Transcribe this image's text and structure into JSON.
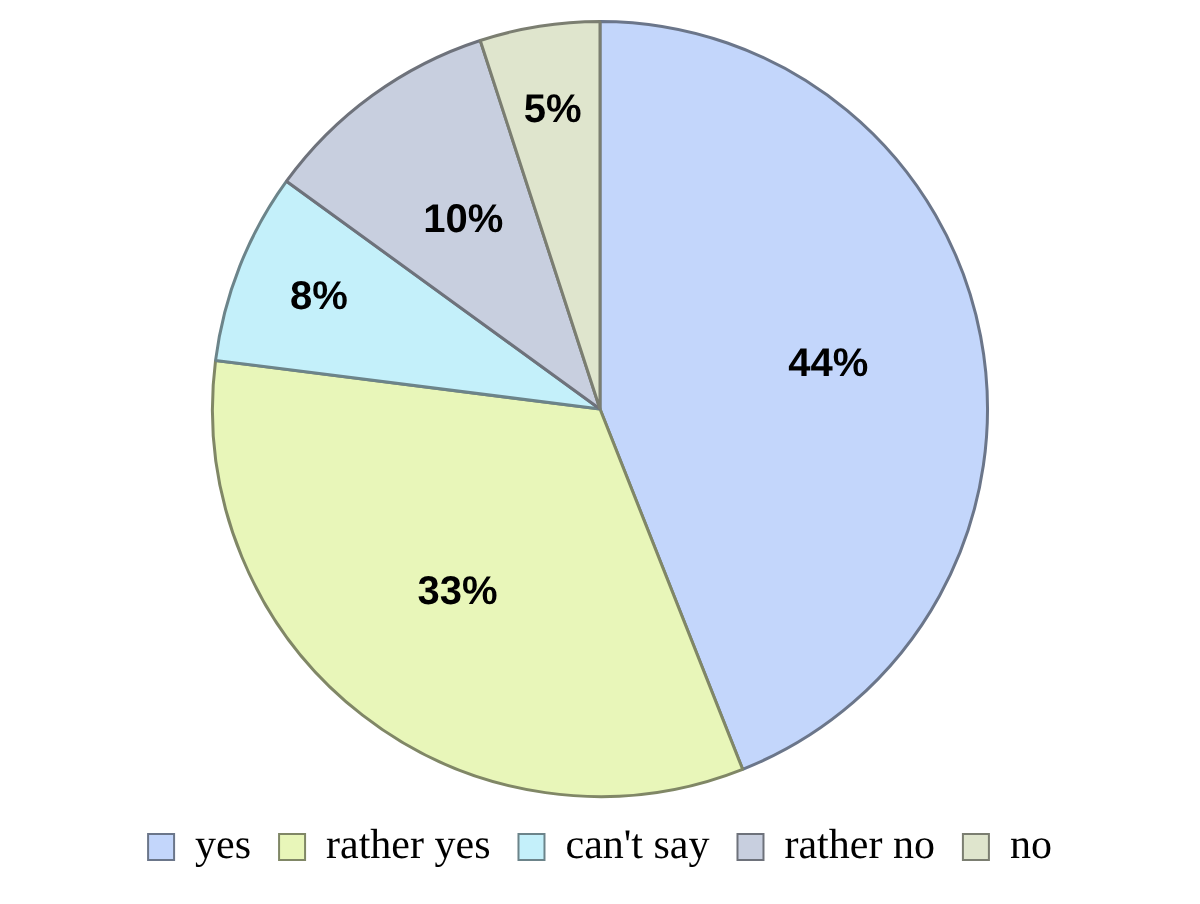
{
  "chart_data": {
    "type": "pie",
    "categories": [
      "yes",
      "rather yes",
      "can't say",
      "rather no",
      "no"
    ],
    "values": [
      44,
      33,
      8,
      10,
      5
    ],
    "colors": [
      "#c3d6fb",
      "#e8f6b9",
      "#c4f0fa",
      "#c8cfdf",
      "#dfe5cd"
    ],
    "value_labels": [
      "44%",
      "33%",
      "8%",
      "10%",
      "5%"
    ],
    "legend": "bottom"
  }
}
